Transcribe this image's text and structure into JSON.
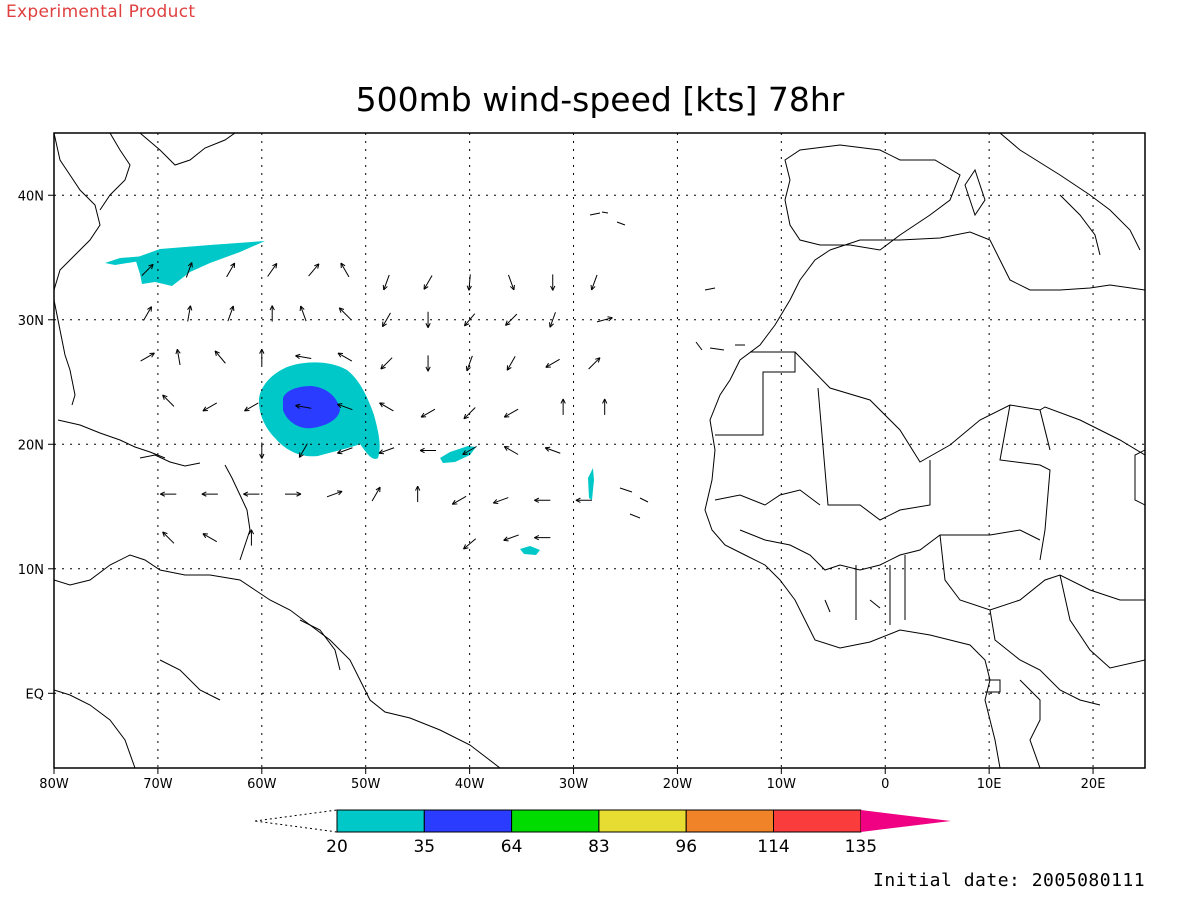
{
  "header": {
    "experimental_label": "Experimental Product"
  },
  "title": "500mb wind-speed [kts] 78hr",
  "footer": {
    "initial_date": "Initial date: 2005080111"
  },
  "map": {
    "lon_range": [
      -80,
      25
    ],
    "lat_range": [
      -6,
      45
    ],
    "x_ticks": [
      {
        "lon": -80,
        "label": "80W"
      },
      {
        "lon": -70,
        "label": "70W"
      },
      {
        "lon": -60,
        "label": "60W"
      },
      {
        "lon": -50,
        "label": "50W"
      },
      {
        "lon": -40,
        "label": "40W"
      },
      {
        "lon": -30,
        "label": "30W"
      },
      {
        "lon": -20,
        "label": "20W"
      },
      {
        "lon": -10,
        "label": "10W"
      },
      {
        "lon": 0,
        "label": "0"
      },
      {
        "lon": 10,
        "label": "10E"
      },
      {
        "lon": 20,
        "label": "20E"
      }
    ],
    "y_ticks": [
      {
        "lat": 40,
        "label": "40N"
      },
      {
        "lat": 30,
        "label": "30N"
      },
      {
        "lat": 20,
        "label": "20N"
      },
      {
        "lat": 10,
        "label": "10N"
      },
      {
        "lat": 0,
        "label": "EQ"
      }
    ],
    "grid": true,
    "colors": {
      "coast": "#000000",
      "grid": "#000000"
    }
  },
  "colorbar": {
    "labels": [
      "20",
      "35",
      "64",
      "83",
      "96",
      "114",
      "135"
    ],
    "colors": [
      "#00c8c8",
      "#2a3cff",
      "#00dc00",
      "#e6dc32",
      "#f08228",
      "#fa3c3c",
      "#f00082"
    ]
  },
  "chart_data": {
    "type": "heatmap",
    "title": "500mb wind-speed [kts] 78hr",
    "xlim": [
      -80,
      25
    ],
    "ylim": [
      -6,
      45
    ],
    "shaded_regions": [
      {
        "level": "20-35",
        "center_lon": -55,
        "center_lat": 22.5,
        "note_color": "#00c8c8"
      },
      {
        "level": "35-64",
        "center_lon": -54.5,
        "center_lat": 23,
        "note_color": "#2a3cff"
      },
      {
        "level": "20-35",
        "center_lon": -68,
        "center_lat": 35,
        "note_color": "#00c8c8"
      },
      {
        "level": "20-35",
        "center_lon": -38,
        "center_lat": 20,
        "note_color": "#00c8c8"
      },
      {
        "level": "20-35",
        "center_lon": -34,
        "center_lat": 12.5,
        "note_color": "#00c8c8"
      },
      {
        "level": "20-35",
        "center_lon": -28.5,
        "center_lat": 17.5,
        "note_color": "#00c8c8"
      }
    ],
    "vectors": [
      {
        "lon": -71,
        "lat": 34,
        "dir": 45
      },
      {
        "lon": -67,
        "lat": 34,
        "dir": 20
      },
      {
        "lon": -63,
        "lat": 34,
        "dir": 30
      },
      {
        "lon": -59,
        "lat": 34,
        "dir": 35
      },
      {
        "lon": -55,
        "lat": 34,
        "dir": 40
      },
      {
        "lon": -52,
        "lat": 34,
        "dir": -30
      },
      {
        "lon": -48,
        "lat": 33,
        "dir": 200
      },
      {
        "lon": -44,
        "lat": 33,
        "dir": 210
      },
      {
        "lon": -40,
        "lat": 33,
        "dir": 185
      },
      {
        "lon": -36,
        "lat": 33,
        "dir": 160
      },
      {
        "lon": -32,
        "lat": 33,
        "dir": 180
      },
      {
        "lon": -28,
        "lat": 33,
        "dir": 200
      },
      {
        "lon": -71,
        "lat": 30.5,
        "dir": 30
      },
      {
        "lon": -67,
        "lat": 30.5,
        "dir": 10
      },
      {
        "lon": -63,
        "lat": 30.5,
        "dir": 20
      },
      {
        "lon": -59,
        "lat": 30.5,
        "dir": 0
      },
      {
        "lon": -56,
        "lat": 30.5,
        "dir": -20
      },
      {
        "lon": -52,
        "lat": 30.5,
        "dir": -45
      },
      {
        "lon": -48,
        "lat": 30,
        "dir": 210
      },
      {
        "lon": -44,
        "lat": 30,
        "dir": 180
      },
      {
        "lon": -40,
        "lat": 30,
        "dir": 220
      },
      {
        "lon": -36,
        "lat": 30,
        "dir": 225
      },
      {
        "lon": -32,
        "lat": 30,
        "dir": 200
      },
      {
        "lon": -27,
        "lat": 30,
        "dir": 75
      },
      {
        "lon": -71,
        "lat": 27,
        "dir": 60
      },
      {
        "lon": -68,
        "lat": 27,
        "dir": -10
      },
      {
        "lon": -64,
        "lat": 27,
        "dir": -40
      },
      {
        "lon": -60,
        "lat": 27,
        "dir": 0
      },
      {
        "lon": -56,
        "lat": 27,
        "dir": -80
      },
      {
        "lon": -52,
        "lat": 27,
        "dir": -60
      },
      {
        "lon": -48,
        "lat": 26.5,
        "dir": 225
      },
      {
        "lon": -44,
        "lat": 26.5,
        "dir": 180
      },
      {
        "lon": -40,
        "lat": 26.5,
        "dir": 200
      },
      {
        "lon": -36,
        "lat": 26.5,
        "dir": 210
      },
      {
        "lon": -32,
        "lat": 26.5,
        "dir": 240
      },
      {
        "lon": -28,
        "lat": 26.5,
        "dir": 45
      },
      {
        "lon": -69,
        "lat": 23.5,
        "dir": -45
      },
      {
        "lon": -65,
        "lat": 23,
        "dir": 240
      },
      {
        "lon": -61,
        "lat": 23,
        "dir": 240
      },
      {
        "lon": -56,
        "lat": 23,
        "dir": -80
      },
      {
        "lon": -52,
        "lat": 23,
        "dir": -70
      },
      {
        "lon": -48,
        "lat": 23,
        "dir": -60
      },
      {
        "lon": -44,
        "lat": 22.5,
        "dir": 240
      },
      {
        "lon": -40,
        "lat": 22.5,
        "dir": 225
      },
      {
        "lon": -36,
        "lat": 22.5,
        "dir": 240
      },
      {
        "lon": -31,
        "lat": 23,
        "dir": 0
      },
      {
        "lon": -27,
        "lat": 23,
        "dir": 0
      },
      {
        "lon": -60,
        "lat": 19.5,
        "dir": 180
      },
      {
        "lon": -56,
        "lat": 19.5,
        "dir": 210
      },
      {
        "lon": -52,
        "lat": 19.5,
        "dir": 250
      },
      {
        "lon": -48,
        "lat": 19.5,
        "dir": 250
      },
      {
        "lon": -44,
        "lat": 19.5,
        "dir": 270
      },
      {
        "lon": -40,
        "lat": 19.5,
        "dir": 240
      },
      {
        "lon": -36,
        "lat": 19.5,
        "dir": -60
      },
      {
        "lon": -32,
        "lat": 19.5,
        "dir": -70
      },
      {
        "lon": -69,
        "lat": 16,
        "dir": 270
      },
      {
        "lon": -65,
        "lat": 16,
        "dir": -90
      },
      {
        "lon": -61,
        "lat": 16,
        "dir": 270
      },
      {
        "lon": -57,
        "lat": 16,
        "dir": 90
      },
      {
        "lon": -53,
        "lat": 16,
        "dir": 70
      },
      {
        "lon": -49,
        "lat": 16,
        "dir": 30
      },
      {
        "lon": -45,
        "lat": 16,
        "dir": 0
      },
      {
        "lon": -41,
        "lat": 15.5,
        "dir": 240
      },
      {
        "lon": -37,
        "lat": 15.5,
        "dir": 250
      },
      {
        "lon": -33,
        "lat": 15.5,
        "dir": 270
      },
      {
        "lon": -29,
        "lat": 15.5,
        "dir": 270
      },
      {
        "lon": -69,
        "lat": 12.5,
        "dir": -45
      },
      {
        "lon": -65,
        "lat": 12.5,
        "dir": -60
      },
      {
        "lon": -61,
        "lat": 12.5,
        "dir": 0
      },
      {
        "lon": -40,
        "lat": 12,
        "dir": 230
      },
      {
        "lon": -36,
        "lat": 12.5,
        "dir": 250
      },
      {
        "lon": -33,
        "lat": 12.5,
        "dir": 270
      }
    ]
  }
}
